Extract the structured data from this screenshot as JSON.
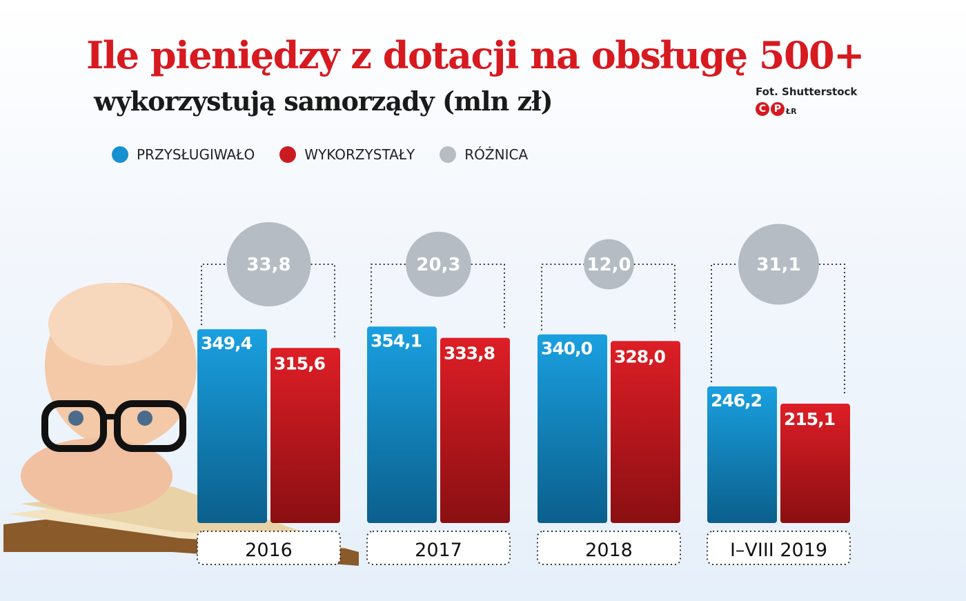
{
  "title": "Ile pieniędzy z dotacji na obsługę 500+",
  "subtitle": "wykorzystują samorządy (mln zł)",
  "credit": "Fot. Shutterstock",
  "logo": {
    "c": "C",
    "p": "P",
    "lr": "ŁR"
  },
  "colors": {
    "przyslugiwalo": "#1591d0",
    "wykorzystaly": "#cc1a22",
    "roznica": "#b5bcc3",
    "title": "#d71920"
  },
  "chart_data": {
    "type": "bar",
    "title": "Ile pieniędzy z dotacji na obsługę 500+",
    "subtitle": "wykorzystują samorządy (mln zł)",
    "categories": [
      "2016",
      "2017",
      "2018",
      "I–VIII 2019"
    ],
    "series": [
      {
        "name": "PRZYSŁUGIWAŁO",
        "values": [
          349.4,
          354.1,
          340.0,
          246.2
        ],
        "labels": [
          "349,4",
          "354,1",
          "340,0",
          "246,2"
        ]
      },
      {
        "name": "WYKORZYSTAŁY",
        "values": [
          315.6,
          333.8,
          328.0,
          215.1
        ],
        "labels": [
          "315,6",
          "333,8",
          "328,0",
          "215,1"
        ]
      },
      {
        "name": "RÓŻNICA",
        "values": [
          33.8,
          20.3,
          12.0,
          31.1
        ],
        "labels": [
          "33,8",
          "20,3",
          "12,0",
          "31,1"
        ]
      }
    ],
    "legend": "top-left",
    "grid": false
  }
}
